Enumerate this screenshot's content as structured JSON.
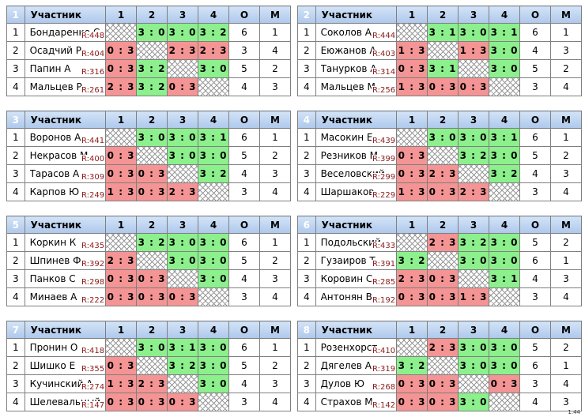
{
  "header": {
    "participant": "Участник",
    "cols": [
      "1",
      "2",
      "3",
      "4"
    ],
    "o": "О",
    "m": "М"
  },
  "version": "1.44",
  "groups": [
    {
      "num": "1",
      "rows": [
        {
          "pos": "1",
          "name": "Бондаренко С",
          "rating": "R:448",
          "cells": [
            "",
            "3 : 0",
            "3 : 0",
            "3 : 2"
          ],
          "o": "6",
          "m": "1"
        },
        {
          "pos": "2",
          "name": "Осадчий Р",
          "rating": "R:404",
          "cells": [
            "0 : 3",
            "",
            "2 : 3",
            "2 : 3"
          ],
          "o": "3",
          "m": "4"
        },
        {
          "pos": "3",
          "name": "Папин А",
          "rating": "R:316",
          "cells": [
            "0 : 3",
            "3 : 2",
            "",
            "3 : 0"
          ],
          "o": "5",
          "m": "2"
        },
        {
          "pos": "4",
          "name": "Мальцев Р",
          "rating": "R:261",
          "cells": [
            "2 : 3",
            "3 : 2",
            "0 : 3",
            ""
          ],
          "o": "4",
          "m": "3"
        }
      ]
    },
    {
      "num": "2",
      "rows": [
        {
          "pos": "1",
          "name": "Соколов А",
          "rating": "R:444",
          "cells": [
            "",
            "3 : 1",
            "3 : 0",
            "3 : 1"
          ],
          "o": "6",
          "m": "1"
        },
        {
          "pos": "2",
          "name": "Еюжанов А",
          "rating": "R:403",
          "cells": [
            "1 : 3",
            "",
            "1 : 3",
            "3 : 0"
          ],
          "o": "4",
          "m": "3"
        },
        {
          "pos": "3",
          "name": "Танурков А",
          "rating": "R:314",
          "cells": [
            "0 : 3",
            "3 : 1",
            "",
            "3 : 0"
          ],
          "o": "5",
          "m": "2"
        },
        {
          "pos": "4",
          "name": "Мальцев М",
          "rating": "R:256",
          "cells": [
            "1 : 3",
            "0 : 3",
            "0 : 3",
            ""
          ],
          "o": "3",
          "m": "4"
        }
      ]
    },
    {
      "num": "3",
      "rows": [
        {
          "pos": "1",
          "name": "Воронов А",
          "rating": "R:441",
          "cells": [
            "",
            "3 : 0",
            "3 : 0",
            "3 : 1"
          ],
          "o": "6",
          "m": "1"
        },
        {
          "pos": "2",
          "name": "Некрасов М",
          "rating": "R:400",
          "cells": [
            "0 : 3",
            "",
            "3 : 0",
            "3 : 0"
          ],
          "o": "5",
          "m": "2"
        },
        {
          "pos": "3",
          "name": "Тарасов А",
          "rating": "R:309",
          "cells": [
            "0 : 3",
            "0 : 3",
            "",
            "3 : 2"
          ],
          "o": "4",
          "m": "3"
        },
        {
          "pos": "4",
          "name": "Карпов Ю",
          "rating": "R:249",
          "cells": [
            "1 : 3",
            "0 : 3",
            "2 : 3",
            ""
          ],
          "o": "3",
          "m": "4"
        }
      ]
    },
    {
      "num": "4",
      "rows": [
        {
          "pos": "1",
          "name": "Масокин Е",
          "rating": "R:439",
          "cells": [
            "",
            "3 : 0",
            "3 : 0",
            "3 : 1"
          ],
          "o": "6",
          "m": "1"
        },
        {
          "pos": "2",
          "name": "Резников М",
          "rating": "R:399",
          "cells": [
            "0 : 3",
            "",
            "3 : 2",
            "3 : 0"
          ],
          "o": "5",
          "m": "2"
        },
        {
          "pos": "3",
          "name": "Веселовский",
          "rating": "R:299",
          "cells": [
            "0 : 3",
            "2 : 3",
            "",
            "3 : 2"
          ],
          "o": "4",
          "m": "3"
        },
        {
          "pos": "4",
          "name": "Шаршаков",
          "rating": "R:229",
          "cells": [
            "1 : 3",
            "0 : 3",
            "2 : 3",
            ""
          ],
          "o": "3",
          "m": "4"
        }
      ]
    },
    {
      "num": "5",
      "rows": [
        {
          "pos": "1",
          "name": "Коркин К",
          "rating": "R:435",
          "cells": [
            "",
            "3 : 2",
            "3 : 0",
            "3 : 0"
          ],
          "o": "6",
          "m": "1"
        },
        {
          "pos": "2",
          "name": "Шпинев Ф",
          "rating": "R:392",
          "cells": [
            "2 : 3",
            "",
            "3 : 0",
            "3 : 0"
          ],
          "o": "5",
          "m": "2"
        },
        {
          "pos": "3",
          "name": "Панков С",
          "rating": "R:298",
          "cells": [
            "0 : 3",
            "0 : 3",
            "",
            "3 : 0"
          ],
          "o": "4",
          "m": "3"
        },
        {
          "pos": "4",
          "name": "Минаев А",
          "rating": "R:222",
          "cells": [
            "0 : 3",
            "0 : 3",
            "0 : 3",
            ""
          ],
          "o": "3",
          "m": "4"
        }
      ]
    },
    {
      "num": "6",
      "rows": [
        {
          "pos": "1",
          "name": "Подольский",
          "rating": "R:433",
          "cells": [
            "",
            "2 : 3",
            "3 : 2",
            "3 : 0"
          ],
          "o": "5",
          "m": "2"
        },
        {
          "pos": "2",
          "name": "Гузаиров Т",
          "rating": "R:391",
          "cells": [
            "3 : 2",
            "",
            "3 : 0",
            "3 : 0"
          ],
          "o": "6",
          "m": "1"
        },
        {
          "pos": "3",
          "name": "Коровин С",
          "rating": "R:285",
          "cells": [
            "2 : 3",
            "0 : 3",
            "",
            "3 : 1"
          ],
          "o": "4",
          "m": "3"
        },
        {
          "pos": "4",
          "name": "Антонян В",
          "rating": "R:192",
          "cells": [
            "0 : 3",
            "0 : 3",
            "1 : 3",
            ""
          ],
          "o": "3",
          "m": "4"
        }
      ]
    },
    {
      "num": "7",
      "rows": [
        {
          "pos": "1",
          "name": "Пронин О",
          "rating": "R:418",
          "cells": [
            "",
            "3 : 0",
            "3 : 1",
            "3 : 0"
          ],
          "o": "6",
          "m": "1"
        },
        {
          "pos": "2",
          "name": "Шишко Е",
          "rating": "R:355",
          "cells": [
            "0 : 3",
            "",
            "3 : 2",
            "3 : 0"
          ],
          "o": "5",
          "m": "2"
        },
        {
          "pos": "3",
          "name": "Кучинский А",
          "rating": "R:274",
          "cells": [
            "1 : 3",
            "2 : 3",
            "",
            "3 : 0"
          ],
          "o": "4",
          "m": "3"
        },
        {
          "pos": "4",
          "name": "Шелевальный",
          "rating": "R:147",
          "cells": [
            "0 : 3",
            "0 : 3",
            "0 : 3",
            ""
          ],
          "o": "3",
          "m": "4"
        }
      ]
    },
    {
      "num": "8",
      "rows": [
        {
          "pos": "1",
          "name": "Розенхорст",
          "rating": "R:410",
          "cells": [
            "",
            "2 : 3",
            "3 : 0",
            "3 : 0"
          ],
          "o": "5",
          "m": "2"
        },
        {
          "pos": "2",
          "name": "Дягелев А",
          "rating": "R:319",
          "cells": [
            "3 : 2",
            "",
            "3 : 0",
            "3 : 0"
          ],
          "o": "6",
          "m": "1"
        },
        {
          "pos": "3",
          "name": "Дулов Ю",
          "rating": "R:268",
          "cells": [
            "0 : 3",
            "0 : 3",
            "",
            "0 : 3"
          ],
          "o": "3",
          "m": "4"
        },
        {
          "pos": "4",
          "name": "Страхов М",
          "rating": "R:142",
          "cells": [
            "0 : 3",
            "0 : 3",
            "3 : 0",
            ""
          ],
          "o": "4",
          "m": "3"
        }
      ]
    }
  ]
}
